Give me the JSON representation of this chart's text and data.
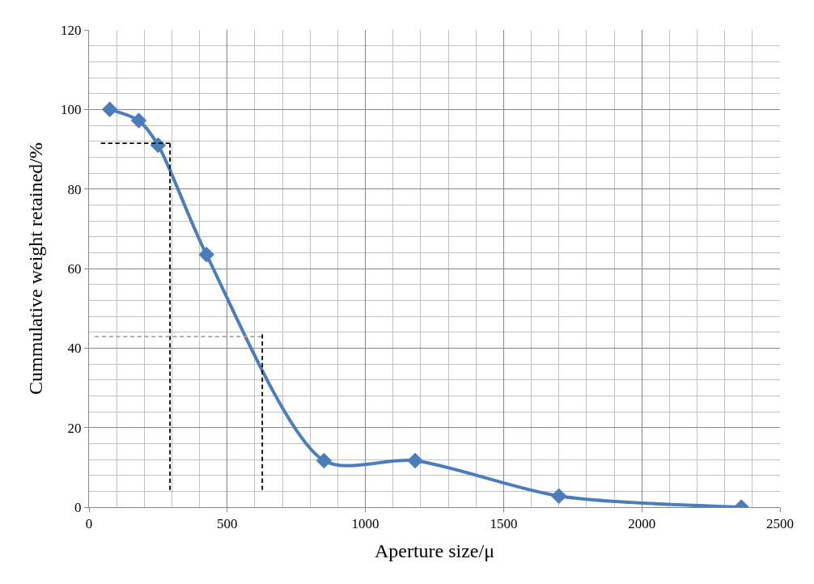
{
  "chart_data": {
    "type": "line",
    "xlabel": "Aperture size/μ",
    "ylabel": "Cummulative weight retained/%",
    "xlim": [
      0,
      2500
    ],
    "xticks": [
      0,
      500,
      1000,
      1500,
      2000,
      2500
    ],
    "ylim": [
      0,
      120
    ],
    "yticks": [
      0,
      20,
      40,
      60,
      80,
      100,
      120
    ],
    "grid": true,
    "series": [
      {
        "color": "#4a7ebb",
        "marker": "diamond",
        "line_style": "solid",
        "x": [
          75,
          180,
          250,
          425,
          850,
          1180,
          1700,
          2360
        ],
        "values": [
          100,
          97.2,
          91,
          63.5,
          11.7,
          11.7,
          2.8,
          0
        ]
      },
      {
        "color": "#000000",
        "marker": "none",
        "line_style": "dashed",
        "x": [
          43,
          293
        ],
        "values": [
          91.5,
          91.5
        ]
      },
      {
        "color": "#000000",
        "marker": "none",
        "line_style": "dashed",
        "x": [
          293,
          293
        ],
        "values": [
          4.3,
          91.5
        ]
      },
      {
        "color": "#a6a6a6",
        "marker": "none",
        "line_style": "dashed",
        "x": [
          21,
          625
        ],
        "values": [
          42.9,
          42.9
        ]
      },
      {
        "color": "#000000",
        "marker": "none",
        "line_style": "dashed",
        "x": [
          627,
          627
        ],
        "values": [
          4.3,
          43.5
        ]
      }
    ]
  }
}
